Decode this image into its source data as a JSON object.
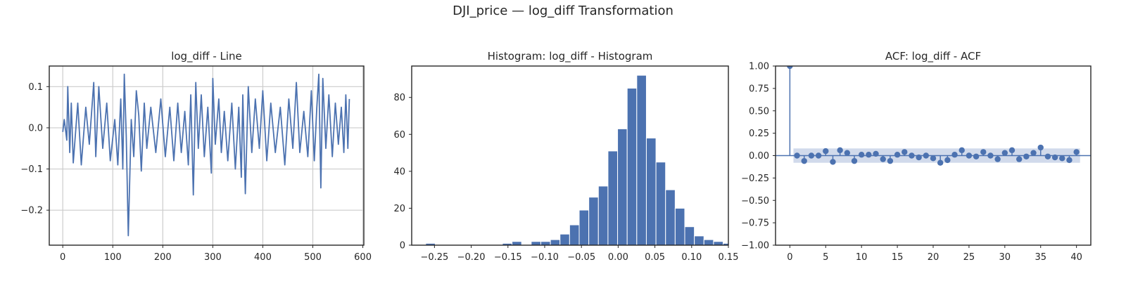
{
  "figure": {
    "suptitle": "DJI_price — log_diff Transformation",
    "colors": {
      "series": "#4c72b0",
      "grid": "#cccccc",
      "axes": "#262626",
      "band": "#c9d3e8"
    }
  },
  "chart_data": [
    {
      "type": "line",
      "title": "log_diff - Line",
      "xlim": [
        -27,
        602
      ],
      "ylim": [
        -0.285,
        0.15
      ],
      "xticks": [
        0,
        100,
        200,
        300,
        400,
        500,
        600
      ],
      "xtick_labels": [
        "0",
        "100",
        "200",
        "300",
        "400",
        "500",
        "600"
      ],
      "yticks": [
        0.1,
        0.0,
        -0.1,
        -0.2
      ],
      "ytick_labels": [
        "0.1",
        "0.0",
        "−0.1",
        "−0.2"
      ],
      "grid": true,
      "n_points": 574,
      "series": [
        {
          "x": [
            0,
            3,
            8,
            10,
            14,
            17,
            21,
            30,
            37,
            46,
            53,
            62,
            66,
            72,
            80,
            88,
            95,
            104,
            110,
            116,
            120,
            123,
            127,
            131,
            137,
            142,
            147,
            152,
            157,
            163,
            168,
            176,
            186,
            196,
            205,
            214,
            222,
            230,
            237,
            244,
            251,
            256,
            261,
            266,
            271,
            277,
            283,
            290,
            297,
            300,
            305,
            312,
            317,
            323,
            330,
            338,
            345,
            352,
            357,
            360,
            365,
            371,
            378,
            385,
            393,
            400,
            408,
            416,
            425,
            435,
            444,
            452,
            460,
            467,
            474,
            482,
            490,
            497,
            503,
            508,
            512,
            516,
            520,
            526,
            532,
            539,
            545,
            551,
            557,
            562,
            566,
            570,
            573
          ],
          "y": [
            -0.01,
            0.02,
            -0.03,
            0.1,
            -0.06,
            0.06,
            -0.085,
            0.06,
            -0.09,
            0.05,
            -0.04,
            0.11,
            -0.07,
            0.1,
            -0.05,
            0.06,
            -0.08,
            0.02,
            -0.09,
            0.07,
            -0.1,
            0.13,
            -0.02,
            -0.262,
            0.02,
            -0.07,
            0.09,
            0.03,
            -0.105,
            0.06,
            -0.05,
            0.05,
            -0.06,
            0.07,
            -0.07,
            0.05,
            -0.08,
            0.06,
            -0.06,
            0.04,
            -0.09,
            0.08,
            -0.163,
            0.11,
            -0.05,
            0.08,
            -0.07,
            0.05,
            -0.11,
            0.12,
            -0.04,
            0.07,
            -0.06,
            0.04,
            -0.08,
            0.06,
            -0.1,
            0.05,
            -0.12,
            0.08,
            -0.16,
            0.1,
            -0.06,
            0.07,
            -0.05,
            0.09,
            -0.08,
            0.06,
            -0.06,
            0.05,
            -0.09,
            0.07,
            -0.05,
            0.11,
            -0.06,
            0.04,
            -0.07,
            0.09,
            -0.08,
            0.05,
            0.13,
            -0.146,
            0.12,
            -0.05,
            0.08,
            -0.07,
            0.06,
            -0.04,
            0.05,
            -0.06,
            0.08,
            -0.05,
            0.07
          ]
        }
      ]
    },
    {
      "type": "bar",
      "title": "Histogram: log_diff - Histogram",
      "xlim": [
        -0.281,
        0.15
      ],
      "ylim": [
        0,
        97
      ],
      "xticks": [
        -0.25,
        -0.2,
        -0.15,
        -0.1,
        -0.05,
        0.0,
        0.05,
        0.1,
        0.15
      ],
      "xtick_labels": [
        "−0.25",
        "−0.20",
        "−0.15",
        "−0.10",
        "−0.05",
        "0.00",
        "0.05",
        "0.10",
        "0.15"
      ],
      "yticks": [
        0,
        20,
        40,
        60,
        80
      ],
      "ytick_labels": [
        "0",
        "20",
        "40",
        "60",
        "80"
      ],
      "grid": false,
      "bin_start": -0.262,
      "bin_width": 0.01306,
      "values": [
        1,
        0,
        0,
        0,
        0,
        0,
        0,
        0,
        1,
        2,
        0,
        2,
        2,
        3,
        6,
        11,
        19,
        26,
        32,
        51,
        63,
        85,
        92,
        58,
        45,
        30,
        20,
        10,
        5,
        3,
        2,
        1
      ]
    },
    {
      "type": "scatter",
      "title": "ACF: log_diff - ACF",
      "xlim": [
        -2,
        42
      ],
      "ylim": [
        -1.0,
        1.0
      ],
      "xticks": [
        0,
        5,
        10,
        15,
        20,
        25,
        30,
        35,
        40
      ],
      "xtick_labels": [
        "0",
        "5",
        "10",
        "15",
        "20",
        "25",
        "30",
        "35",
        "40"
      ],
      "yticks": [
        1.0,
        0.75,
        0.5,
        0.25,
        0.0,
        -0.25,
        -0.5,
        -0.75,
        -1.0
      ],
      "ytick_labels": [
        "1.00",
        "0.75",
        "0.50",
        "0.25",
        "0.00",
        "−0.25",
        "−0.50",
        "−0.75",
        "−1.00"
      ],
      "grid": false,
      "confidence_band": [
        -0.08,
        0.08
      ],
      "lags": [
        0,
        1,
        2,
        3,
        4,
        5,
        6,
        7,
        8,
        9,
        10,
        11,
        12,
        13,
        14,
        15,
        16,
        17,
        18,
        19,
        20,
        21,
        22,
        23,
        24,
        25,
        26,
        27,
        28,
        29,
        30,
        31,
        32,
        33,
        34,
        35,
        36,
        37,
        38,
        39,
        40
      ],
      "values": [
        1.0,
        0.0,
        -0.06,
        0.0,
        0.0,
        0.05,
        -0.07,
        0.06,
        0.03,
        -0.06,
        0.01,
        0.01,
        0.02,
        -0.04,
        -0.06,
        0.01,
        0.04,
        0.0,
        -0.02,
        0.0,
        -0.03,
        -0.08,
        -0.05,
        0.01,
        0.06,
        0.0,
        -0.01,
        0.04,
        0.0,
        -0.04,
        0.03,
        0.06,
        -0.04,
        -0.01,
        0.03,
        0.09,
        -0.01,
        -0.02,
        -0.03,
        -0.05,
        0.04
      ]
    }
  ]
}
